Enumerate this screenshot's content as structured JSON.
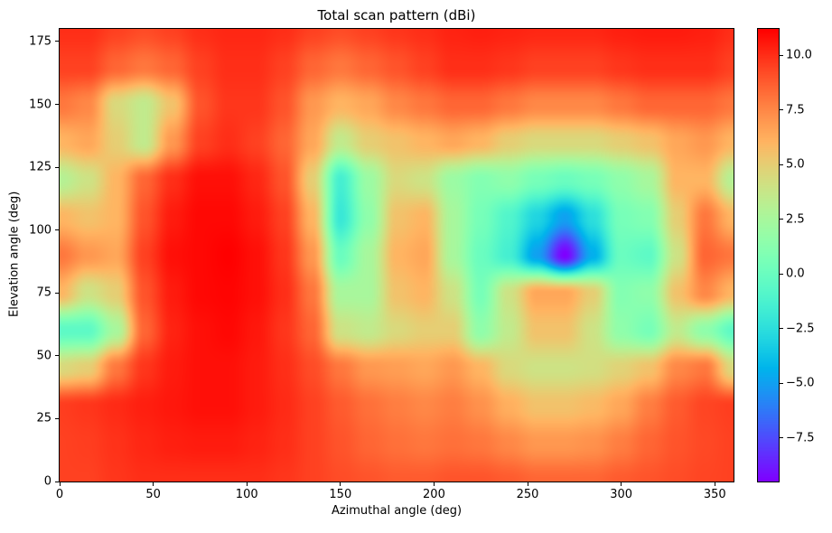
{
  "chart_data": {
    "type": "heatmap",
    "title": "Total scan pattern (dBi)",
    "xlabel": "Azimuthal angle (deg)",
    "ylabel": "Elevation angle (deg)",
    "colormap": "rainbow",
    "x_range": [
      0,
      360
    ],
    "y_range": [
      0,
      180
    ],
    "x_ticks": [
      0,
      50,
      100,
      150,
      200,
      250,
      300,
      350
    ],
    "y_ticks": [
      0,
      25,
      50,
      75,
      100,
      125,
      150,
      175
    ],
    "colorbar_ticks": [
      10.0,
      7.5,
      5.0,
      2.5,
      0.0,
      -2.5,
      -5.0,
      -7.5
    ],
    "vmin": -9.5,
    "vmax": 11.2,
    "x": [
      0,
      15,
      30,
      45,
      60,
      75,
      90,
      105,
      120,
      135,
      150,
      165,
      180,
      195,
      210,
      225,
      240,
      255,
      270,
      285,
      300,
      315,
      330,
      345,
      360
    ],
    "y": [
      0,
      15,
      30,
      45,
      60,
      75,
      90,
      105,
      120,
      135,
      150,
      165,
      180
    ],
    "values_dbi": [
      [
        9.5,
        9.5,
        9.8,
        10.0,
        10.0,
        10.0,
        10.0,
        10.0,
        9.8,
        9.5,
        9.2,
        9.0,
        8.8,
        8.8,
        9.0,
        9.0,
        8.8,
        8.5,
        8.5,
        8.5,
        8.8,
        9.0,
        9.2,
        9.4,
        9.5
      ],
      [
        9.5,
        9.6,
        9.9,
        10.2,
        10.4,
        10.5,
        10.5,
        10.3,
        10.0,
        9.5,
        9.0,
        8.5,
        8.2,
        8.0,
        8.2,
        8.0,
        7.5,
        7.0,
        7.0,
        7.2,
        7.8,
        8.5,
        9.0,
        9.3,
        9.5
      ],
      [
        9.6,
        9.8,
        10.1,
        10.4,
        10.6,
        10.8,
        10.8,
        10.5,
        10.1,
        9.5,
        8.8,
        8.2,
        7.8,
        7.5,
        7.8,
        7.2,
        6.2,
        5.5,
        5.5,
        5.8,
        6.5,
        7.8,
        8.8,
        9.4,
        9.6
      ],
      [
        4.5,
        5.0,
        8.0,
        9.8,
        10.5,
        10.8,
        10.8,
        10.5,
        10.0,
        9.2,
        8.0,
        7.0,
        6.8,
        6.5,
        7.0,
        6.0,
        4.5,
        4.0,
        4.0,
        4.2,
        4.8,
        5.5,
        7.5,
        8.0,
        4.5
      ],
      [
        -0.5,
        -0.5,
        2.5,
        8.5,
        10.3,
        10.8,
        11.0,
        10.6,
        9.8,
        8.5,
        4.0,
        3.5,
        4.5,
        5.0,
        5.0,
        1.5,
        3.5,
        5.5,
        5.5,
        4.0,
        1.5,
        0.5,
        3.5,
        1.5,
        -0.5
      ],
      [
        6.0,
        4.0,
        5.0,
        9.0,
        10.5,
        11.0,
        11.1,
        10.8,
        10.0,
        8.0,
        2.5,
        2.5,
        5.5,
        6.0,
        4.0,
        0.5,
        4.0,
        6.5,
        6.5,
        5.0,
        1.0,
        1.5,
        5.5,
        7.5,
        6.0
      ],
      [
        8.0,
        7.0,
        6.5,
        9.5,
        10.8,
        11.0,
        11.2,
        10.8,
        9.8,
        7.0,
        0.0,
        2.5,
        6.0,
        6.5,
        2.5,
        0.0,
        -1.5,
        -5.0,
        -9.5,
        -4.5,
        0.0,
        -0.5,
        4.0,
        8.5,
        8.0
      ],
      [
        6.0,
        5.5,
        6.0,
        9.0,
        10.5,
        11.0,
        11.0,
        10.5,
        9.5,
        6.0,
        -2.0,
        1.5,
        5.5,
        6.0,
        2.5,
        0.5,
        -1.0,
        -3.0,
        -5.0,
        -2.5,
        0.5,
        1.0,
        5.0,
        8.0,
        6.0
      ],
      [
        3.0,
        4.0,
        6.0,
        8.5,
        10.0,
        10.8,
        10.8,
        10.2,
        9.0,
        5.0,
        -1.5,
        2.0,
        4.5,
        4.0,
        2.0,
        1.0,
        1.5,
        0.5,
        0.0,
        0.5,
        1.5,
        2.5,
        6.0,
        6.0,
        3.0
      ],
      [
        6.0,
        6.5,
        5.0,
        3.5,
        7.0,
        9.5,
        10.0,
        9.5,
        8.5,
        6.5,
        3.5,
        5.0,
        5.5,
        6.0,
        6.5,
        6.0,
        5.0,
        4.5,
        4.5,
        4.5,
        5.0,
        5.5,
        6.5,
        7.0,
        6.0
      ],
      [
        8.0,
        7.5,
        4.5,
        3.5,
        5.5,
        9.0,
        9.8,
        9.8,
        9.0,
        7.0,
        6.0,
        6.5,
        7.5,
        8.0,
        8.5,
        8.5,
        8.0,
        7.5,
        7.5,
        7.5,
        8.0,
        8.5,
        8.5,
        8.5,
        8.0
      ],
      [
        9.5,
        9.5,
        8.5,
        8.0,
        8.5,
        9.5,
        10.0,
        10.0,
        9.5,
        8.5,
        8.0,
        8.5,
        9.0,
        9.5,
        10.0,
        10.0,
        9.8,
        9.5,
        9.5,
        9.5,
        9.8,
        10.0,
        10.0,
        10.0,
        9.5
      ],
      [
        10.0,
        10.0,
        9.5,
        9.2,
        9.5,
        10.0,
        10.2,
        10.2,
        10.0,
        9.5,
        9.2,
        9.5,
        9.8,
        10.0,
        10.3,
        10.4,
        10.3,
        10.2,
        10.2,
        10.2,
        10.4,
        10.5,
        10.5,
        10.4,
        10.0
      ]
    ]
  }
}
